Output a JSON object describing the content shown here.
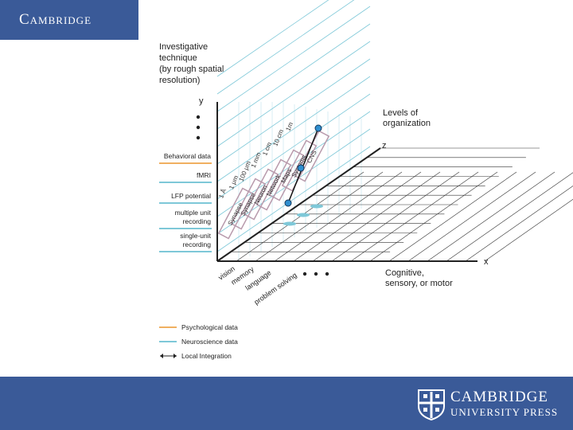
{
  "header": {
    "logo_text": "Cambridge"
  },
  "footer": {
    "press_name": "CAMBRIDGE",
    "press_subtitle": "UNIVERSITY PRESS"
  },
  "diagram": {
    "title_lines": [
      "Investigative",
      "technique",
      "(by rough spatial",
      "resolution)"
    ],
    "y_axis_label": "y",
    "x_axis_label": "x",
    "z_axis_label": "z",
    "levels_label_lines": [
      "Levels of",
      "organization"
    ],
    "cognitive_label_lines": [
      "Cognitive,",
      "sensory, or motor"
    ],
    "techniques": [
      {
        "lines": [
          "Behavioral data"
        ],
        "type": "psych"
      },
      {
        "lines": [
          "fMRI"
        ],
        "type": "neuro"
      },
      {
        "lines": [
          "LFP potential"
        ],
        "type": "neuro"
      },
      {
        "lines": [
          "multiple unit",
          "recording"
        ],
        "type": "neuro"
      },
      {
        "lines": [
          "single-unit",
          "recording"
        ],
        "type": "neuro"
      }
    ],
    "resolution_labels": [
      "1 Å",
      "1 μm",
      "100 μm",
      "1 mm",
      "1 cm",
      "10 cm",
      "1m"
    ],
    "organization_labels": [
      "Synapse",
      "Synapse",
      "Neuron",
      "Network",
      "Maps",
      "Systems",
      "CNS"
    ],
    "domains": [
      "vision",
      "memory",
      "language",
      "problem solving"
    ],
    "legend": [
      {
        "label": "Psychological data",
        "type": "psych"
      },
      {
        "label": "Neuroscience data",
        "type": "neuro"
      },
      {
        "label": "Local Integration",
        "type": "arrow"
      }
    ],
    "colors": {
      "psych": "#f0b060",
      "neuro": "#7ec8d8",
      "grid": "#333333",
      "box": "#b89aac",
      "node": "#2f8fd0"
    }
  }
}
